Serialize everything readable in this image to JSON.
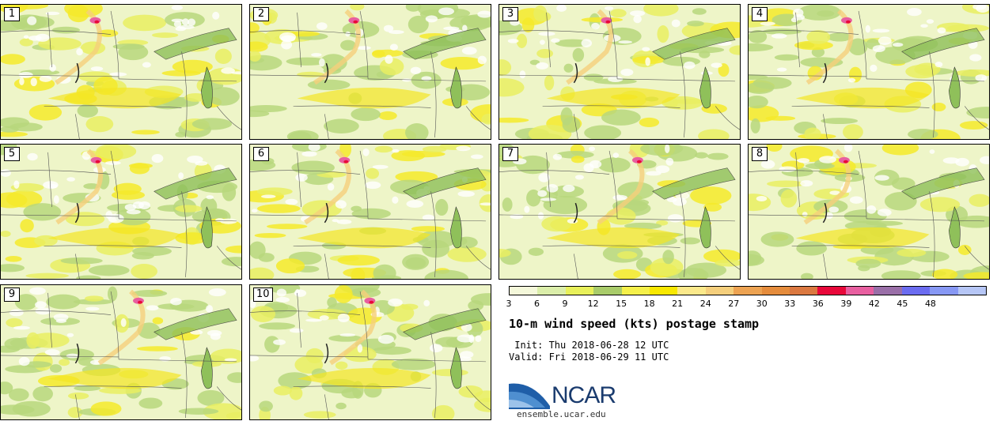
{
  "members": [
    "1",
    "2",
    "3",
    "4",
    "5",
    "6",
    "7",
    "8",
    "9",
    "10"
  ],
  "colorbar": {
    "colors": [
      "#f4f8da",
      "#dbeeaa",
      "#e8f05a",
      "#a9cc6a",
      "#f5f04a",
      "#f8e800",
      "#fbe98b",
      "#f5cf7c",
      "#eda352",
      "#e58c3c",
      "#db7840",
      "#e8083a",
      "#e85fa0",
      "#9a6fa8",
      "#6b6cf0",
      "#8798f4",
      "#b6c6f6"
    ],
    "ticks": [
      "3",
      "6",
      "9",
      "12",
      "15",
      "18",
      "21",
      "24",
      "27",
      "30",
      "33",
      "36",
      "39",
      "42",
      "45",
      "48"
    ]
  },
  "title": "10-m wind speed (kts) postage stamp",
  "init": " Init: Thu 2018-06-28 12 UTC",
  "valid": "Valid: Fri 2018-06-29 11 UTC",
  "logo": {
    "text": "NCAR",
    "url": "ensemble.ucar.edu"
  }
}
